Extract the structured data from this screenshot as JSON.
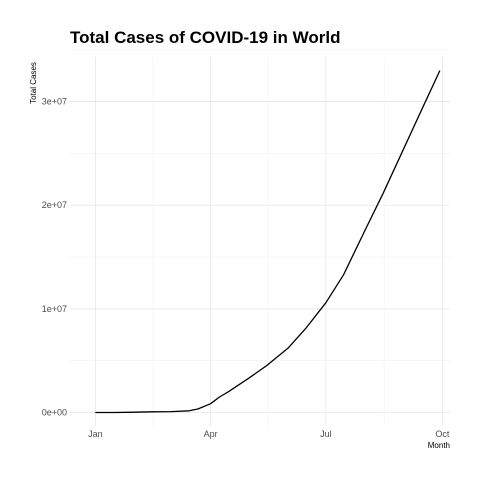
{
  "chart_data": {
    "type": "line",
    "title": "Total Cases of COVID-19 in World",
    "xlabel": "Month",
    "ylabel": "Total Cases",
    "x_ticks": [
      "Jan",
      "Apr",
      "Jul",
      "Oct"
    ],
    "y_ticks": [
      "0e+00",
      "1e+07",
      "2e+07",
      "3e+07"
    ],
    "y_tick_values": [
      0,
      10000000,
      20000000,
      30000000
    ],
    "ylim": [
      -1300000,
      34300000
    ],
    "xlim": [
      "2019-12-12",
      "2020-10-07"
    ],
    "grid": true,
    "legend": "none",
    "line_color": "#000000",
    "series": [
      {
        "x": [
          "2020-01-01",
          "2020-01-15",
          "2020-02-01",
          "2020-02-15",
          "2020-03-01",
          "2020-03-15",
          "2020-03-22",
          "2020-04-01",
          "2020-04-08",
          "2020-04-15",
          "2020-05-01",
          "2020-05-15",
          "2020-06-01",
          "2020-06-15",
          "2020-07-01",
          "2020-07-15",
          "2020-08-01",
          "2020-08-15",
          "2020-09-01",
          "2020-09-15",
          "2020-09-29"
        ],
        "y": [
          0,
          3000,
          30000,
          70000,
          90000,
          170000,
          340000,
          850000,
          1500000,
          2000000,
          3300000,
          4500000,
          6200000,
          8100000,
          10600000,
          13300000,
          17600000,
          21100000,
          25600000,
          29300000,
          33000000
        ]
      }
    ]
  }
}
